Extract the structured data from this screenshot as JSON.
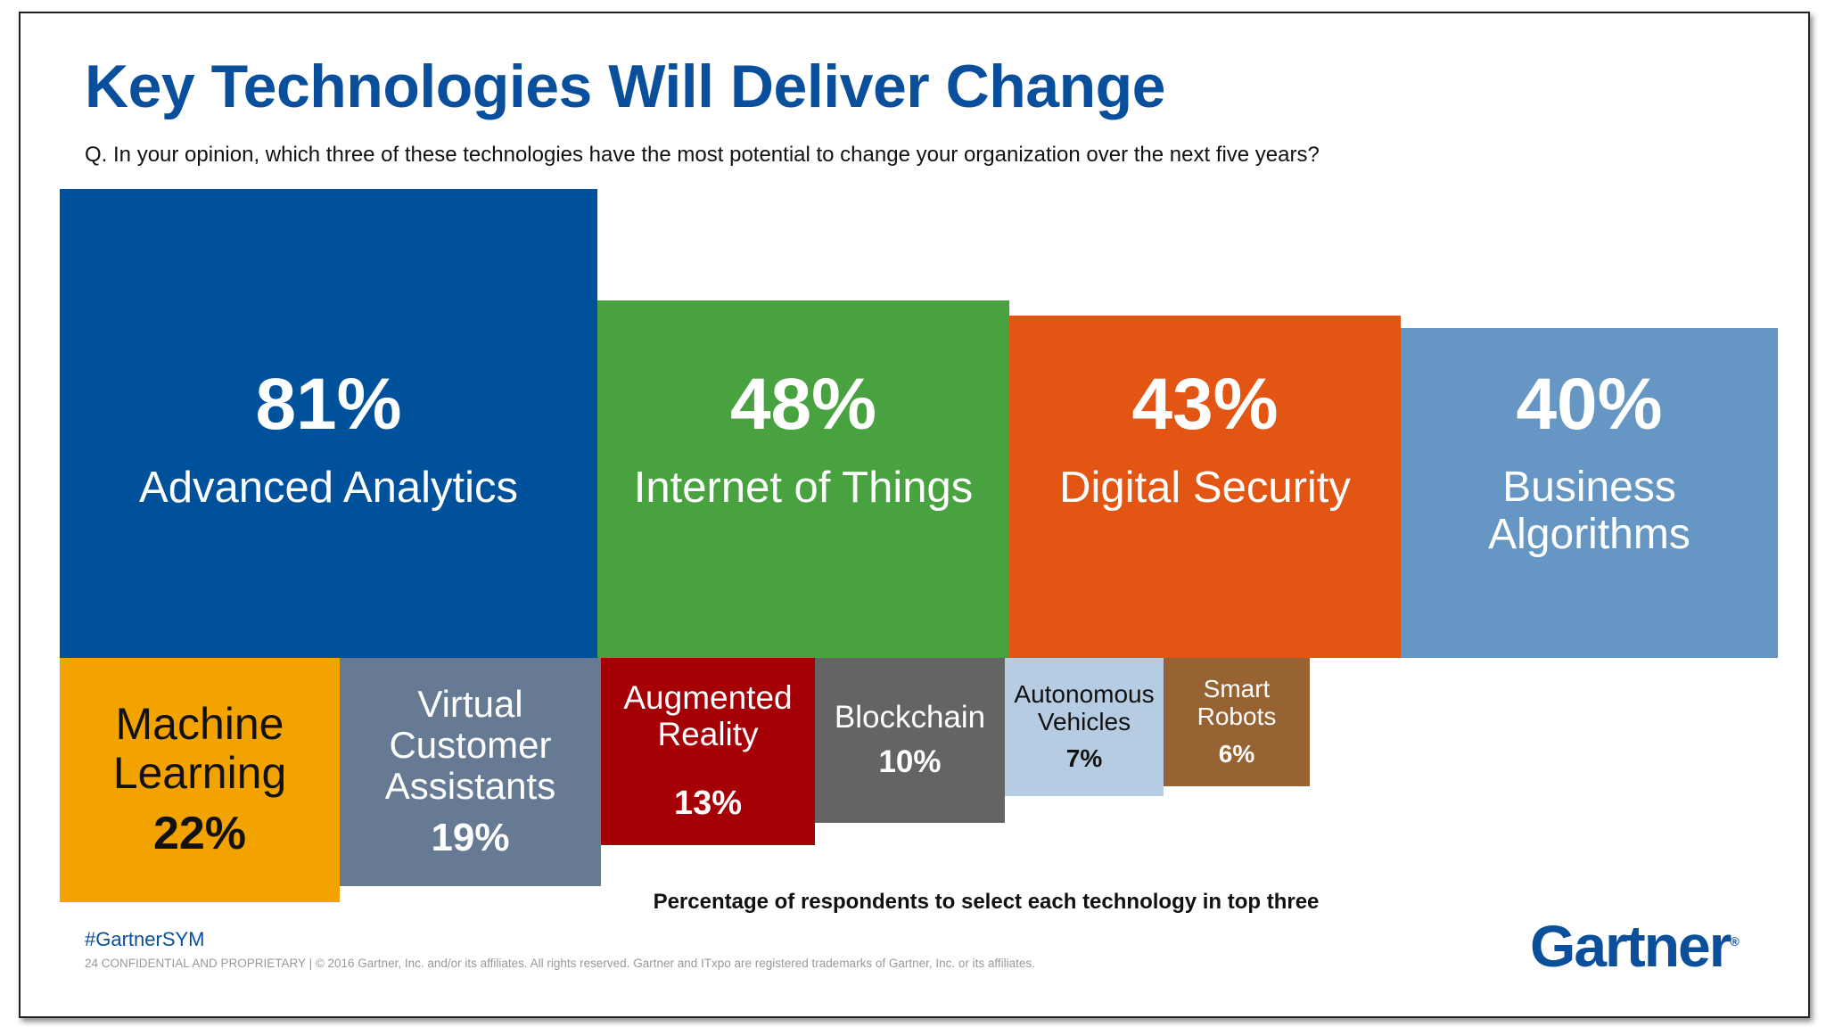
{
  "title": "Key Technologies Will Deliver Change",
  "question": "Q.  In your opinion, which three of these technologies have the most potential to change your organization over the next five years?",
  "caption": "Percentage of respondents to select each technology in top three",
  "footer": {
    "hashtag": "#GartnerSYM",
    "copyright": "24   CONFIDENTIAL AND PROPRIETARY  |  © 2016 Gartner, Inc. and/or its affiliates. All rights reserved. Gartner and ITxpo are registered trademarks of Gartner, Inc. or its affiliates.",
    "logo": "Gartner"
  },
  "chart_data": {
    "type": "bar",
    "title": "Key Technologies Will Deliver Change",
    "ylabel": "",
    "xlabel": "Percentage of respondents to select each technology in top three",
    "categories": [
      "Advanced Analytics",
      "Internet of Things",
      "Digital Security",
      "Business Algorithms",
      "Machine Learning",
      "Virtual Customer Assistants",
      "Augmented Reality",
      "Blockchain",
      "Autonomous Vehicles",
      "Smart Robots"
    ],
    "values": [
      81,
      48,
      43,
      40,
      22,
      19,
      13,
      10,
      7,
      6
    ],
    "tiles": [
      {
        "label": "Advanced Analytics",
        "value_label": "81%",
        "color": "#00519b",
        "text_color": "#ffffff"
      },
      {
        "label": "Internet of Things",
        "value_label": "48%",
        "color": "#47a23f",
        "text_color": "#ffffff"
      },
      {
        "label": "Digital Security",
        "value_label": "43%",
        "color": "#e35512",
        "text_color": "#ffffff"
      },
      {
        "label": "Business Algorithms",
        "value_label": "40%",
        "color": "#6596c4",
        "text_color": "#ffffff"
      },
      {
        "label": "Machine Learning",
        "value_label": "22%",
        "color": "#f3a300",
        "text_color": "#111111"
      },
      {
        "label": "Virtual Customer Assistants",
        "value_label": "19%",
        "color": "#677a93",
        "text_color": "#ffffff"
      },
      {
        "label": "Augmented Reality",
        "value_label": "13%",
        "color": "#a50006",
        "text_color": "#ffffff"
      },
      {
        "label": "Blockchain",
        "value_label": "10%",
        "color": "#646464",
        "text_color": "#ffffff"
      },
      {
        "label": "Autonomous Vehicles",
        "value_label": "7%",
        "color": "#b6cce3",
        "text_color": "#111111"
      },
      {
        "label": "Smart Robots",
        "value_label": "6%",
        "color": "#976332",
        "text_color": "#ffffff"
      }
    ]
  }
}
